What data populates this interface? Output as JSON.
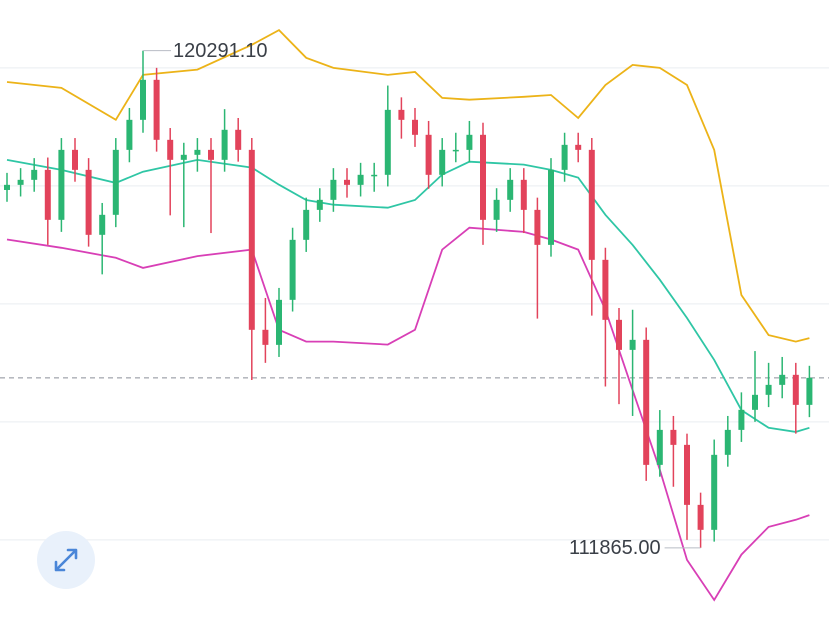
{
  "chart_data": {
    "type": "candlestick",
    "ylim": [
      110540,
      121150
    ],
    "gridlines": [
      120000,
      118000,
      116000,
      114000,
      112000
    ],
    "up_color": "#2bb673",
    "down_color": "#e2435b",
    "candles": [
      [
        117930,
        118220,
        117730,
        118017
      ],
      [
        118017,
        118300,
        117820,
        118102
      ],
      [
        118102,
        118470,
        117900,
        118271
      ],
      [
        118271,
        118480,
        117000,
        117424
      ],
      [
        117424,
        118810,
        117220,
        118610
      ],
      [
        118610,
        118810,
        118070,
        118271
      ],
      [
        118271,
        118470,
        116970,
        117170
      ],
      [
        117170,
        117710,
        116500,
        117509
      ],
      [
        117509,
        118810,
        117300,
        118610
      ],
      [
        118610,
        119320,
        118400,
        119119
      ],
      [
        119119,
        120291.1,
        118900,
        119797
      ],
      [
        119797,
        120000,
        118580,
        118780
      ],
      [
        118780,
        118980,
        117500,
        118441
      ],
      [
        118441,
        118730,
        117300,
        118526
      ],
      [
        118526,
        118810,
        118240,
        118610
      ],
      [
        118610,
        118810,
        117200,
        118441
      ],
      [
        118441,
        119300,
        118240,
        118950
      ],
      [
        118950,
        119150,
        118410,
        118610
      ],
      [
        118610,
        118810,
        114710,
        115560
      ],
      [
        115560,
        116100,
        115000,
        115305
      ],
      [
        115305,
        116270,
        115100,
        116068
      ],
      [
        116068,
        117290,
        115870,
        117085
      ],
      [
        117085,
        117800,
        116880,
        117593
      ],
      [
        117593,
        117960,
        117390,
        117763
      ],
      [
        117763,
        118300,
        117560,
        118102
      ],
      [
        118102,
        118300,
        117800,
        118017
      ],
      [
        118017,
        118390,
        117820,
        118187
      ],
      [
        118187,
        118390,
        117900,
        118187
      ],
      [
        118187,
        119700,
        117990,
        119288
      ],
      [
        119288,
        119500,
        118800,
        119119
      ],
      [
        119119,
        119320,
        118660,
        118865
      ],
      [
        118865,
        119100,
        117950,
        118187
      ],
      [
        118187,
        118810,
        117990,
        118610
      ],
      [
        118610,
        118900,
        118400,
        118610
      ],
      [
        118610,
        119100,
        118400,
        118865
      ],
      [
        118865,
        119070,
        117000,
        117424
      ],
      [
        117424,
        117960,
        117220,
        117763
      ],
      [
        117763,
        118300,
        117560,
        118102
      ],
      [
        118102,
        118300,
        117200,
        117593
      ],
      [
        117593,
        117800,
        115750,
        117000
      ],
      [
        117000,
        118470,
        116800,
        118271
      ],
      [
        118271,
        118900,
        118070,
        118695
      ],
      [
        118695,
        118900,
        118400,
        118610
      ],
      [
        118610,
        118810,
        115800,
        116746
      ],
      [
        116746,
        116950,
        114600,
        115729
      ],
      [
        115729,
        115930,
        114300,
        115220
      ],
      [
        115220,
        115900,
        114100,
        115390
      ],
      [
        115390,
        115600,
        113000,
        113271
      ],
      [
        113271,
        114200,
        113070,
        113864
      ],
      [
        113864,
        114100,
        112900,
        113610
      ],
      [
        113610,
        113800,
        112000,
        112593
      ],
      [
        112593,
        112800,
        111865,
        112170
      ],
      [
        112170,
        113700,
        111970,
        113441
      ],
      [
        113441,
        114100,
        113240,
        113864
      ],
      [
        113864,
        114500,
        113660,
        114204
      ],
      [
        114204,
        115200,
        114000,
        114458
      ],
      [
        114458,
        115000,
        114250,
        114627
      ],
      [
        114627,
        115100,
        114400,
        114797
      ],
      [
        114797,
        115000,
        113800,
        114288
      ],
      [
        114288,
        114950,
        114080,
        114746
      ]
    ],
    "band_x": [
      0,
      4,
      8,
      10,
      14,
      18,
      20,
      22,
      24,
      28,
      30,
      32,
      34,
      38,
      40,
      42,
      44,
      46,
      48,
      50,
      52,
      54,
      56,
      58,
      59
    ],
    "series": [
      {
        "color": "#ecb318",
        "values": [
          119760,
          119660,
          119120,
          119880,
          119970,
          120390,
          120640,
          120170,
          120000,
          119880,
          119930,
          119490,
          119460,
          119510,
          119540,
          119150,
          119710,
          120050,
          120000,
          119710,
          118610,
          116150,
          115470,
          115360,
          115420
        ]
      },
      {
        "color": "#2fc6a5",
        "values": [
          118440,
          118270,
          118050,
          118240,
          118440,
          118310,
          118020,
          117760,
          117680,
          117630,
          117760,
          118190,
          118410,
          118360,
          118270,
          118140,
          117510,
          117000,
          116410,
          115760,
          115050,
          114200,
          113900,
          113830,
          113900
        ]
      },
      {
        "color": "#d83fb6",
        "values": [
          117090,
          116950,
          116780,
          116610,
          116810,
          116920,
          115560,
          115360,
          115360,
          115310,
          115560,
          116920,
          117290,
          117220,
          117090,
          116920,
          115900,
          114540,
          113190,
          111660,
          110980,
          111750,
          112220,
          112340,
          112420
        ]
      }
    ],
    "annotations": [
      {
        "label": "120291.10",
        "value": 120291.1
      },
      {
        "label": "111865.00",
        "value": 111865
      }
    ]
  }
}
